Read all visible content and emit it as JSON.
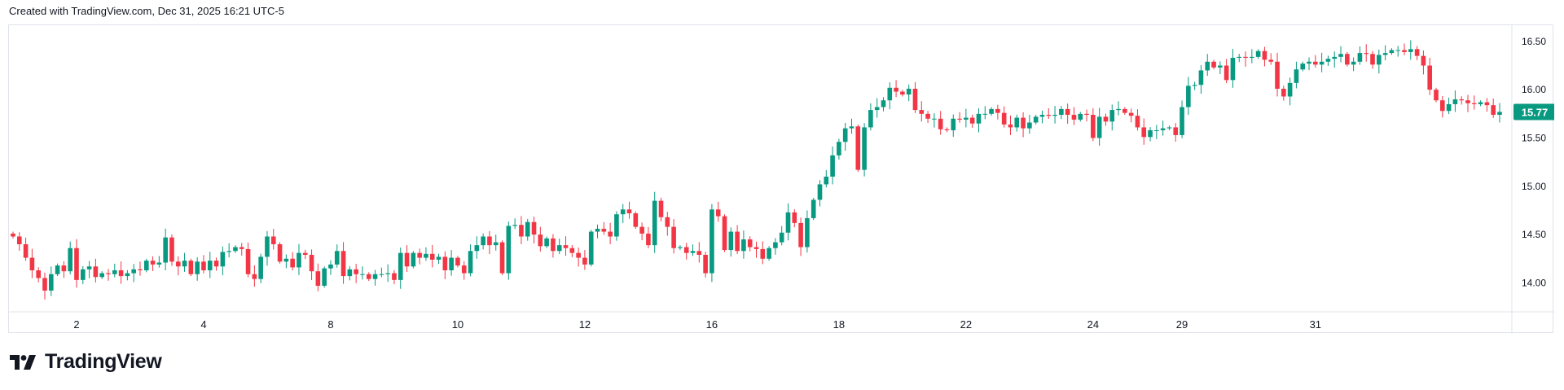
{
  "header": {
    "created_text": "Created with TradingView.com, Dec 31, 2025 16:21 UTC-5"
  },
  "footer": {
    "brand": "TradingView"
  },
  "colors": {
    "up": "#089981",
    "down": "#f23645",
    "grid": "#e0e3eb",
    "axis_text": "#131722",
    "badge_bg": "#089981",
    "badge_text": "#ffffff"
  },
  "icons": {
    "footer_logo": "tradingview-logo-icon"
  },
  "chart_data": {
    "type": "candlestick",
    "title": "",
    "xlabel": "",
    "ylabel": "",
    "ylim": [
      13.7,
      16.6
    ],
    "y_ticks": [
      "14.00",
      "14.50",
      "15.00",
      "15.50",
      "16.00",
      "16.50"
    ],
    "x_ticks": [
      {
        "label": "2",
        "index": 10
      },
      {
        "label": "4",
        "index": 30
      },
      {
        "label": "8",
        "index": 50
      },
      {
        "label": "10",
        "index": 70
      },
      {
        "label": "12",
        "index": 90
      },
      {
        "label": "16",
        "index": 110
      },
      {
        "label": "18",
        "index": 130
      },
      {
        "label": "22",
        "index": 150
      },
      {
        "label": "24",
        "index": 170
      },
      {
        "label": "29",
        "index": 184
      },
      {
        "label": "31",
        "index": 205
      }
    ],
    "last_price": "15.77",
    "grid": false,
    "closes": [
      14.48,
      14.4,
      14.26,
      14.13,
      14.05,
      13.92,
      14.09,
      14.18,
      14.12,
      14.36,
      14.03,
      14.14,
      14.17,
      14.06,
      14.1,
      14.09,
      14.13,
      14.07,
      14.1,
      14.14,
      14.13,
      14.23,
      14.19,
      14.21,
      14.47,
      14.22,
      14.17,
      14.23,
      14.09,
      14.22,
      14.13,
      14.23,
      14.17,
      14.32,
      14.33,
      14.37,
      14.35,
      14.09,
      14.04,
      14.27,
      14.48,
      14.4,
      14.22,
      14.25,
      14.16,
      14.31,
      14.29,
      14.12,
      13.97,
      14.15,
      14.19,
      14.33,
      14.07,
      14.14,
      14.09,
      14.09,
      14.04,
      14.09,
      14.09,
      14.1,
      14.03,
      14.31,
      14.17,
      14.31,
      14.26,
      14.3,
      14.24,
      14.27,
      14.13,
      14.26,
      14.18,
      14.1,
      14.33,
      14.39,
      14.48,
      14.39,
      14.42,
      14.1,
      14.59,
      14.6,
      14.48,
      14.63,
      14.5,
      14.38,
      14.46,
      14.33,
      14.39,
      14.36,
      14.31,
      14.26,
      14.19,
      14.53,
      14.56,
      14.53,
      14.48,
      14.71,
      14.76,
      14.72,
      14.58,
      14.51,
      14.39,
      14.85,
      14.68,
      14.58,
      14.36,
      14.37,
      14.31,
      14.33,
      14.29,
      14.1,
      14.76,
      14.69,
      14.34,
      14.53,
      14.33,
      14.45,
      14.37,
      14.35,
      14.25,
      14.36,
      14.42,
      14.52,
      14.73,
      14.62,
      14.37,
      14.67,
      14.86,
      15.02,
      15.1,
      15.32,
      15.46,
      15.6,
      15.62,
      15.17,
      15.61,
      15.79,
      15.82,
      15.89,
      16.02,
      15.98,
      15.95,
      16.01,
      15.79,
      15.75,
      15.7,
      15.7,
      15.59,
      15.58,
      15.7,
      15.69,
      15.71,
      15.65,
      15.75,
      15.75,
      15.8,
      15.76,
      15.64,
      15.61,
      15.71,
      15.6,
      15.66,
      15.72,
      15.74,
      15.73,
      15.74,
      15.8,
      15.74,
      15.69,
      15.75,
      15.74,
      15.5,
      15.72,
      15.67,
      15.79,
      15.8,
      15.76,
      15.73,
      15.61,
      15.51,
      15.58,
      15.58,
      15.6,
      15.61,
      15.53,
      15.82,
      16.04,
      16.05,
      16.2,
      16.29,
      16.23,
      16.25,
      16.1,
      16.33,
      16.34,
      16.33,
      16.34,
      16.4,
      16.31,
      16.29,
      16.01,
      15.93,
      16.07,
      16.21,
      16.27,
      16.29,
      16.26,
      16.29,
      16.32,
      16.34,
      16.37,
      16.26,
      16.29,
      16.38,
      16.37,
      16.26,
      16.36,
      16.38,
      16.41,
      16.41,
      16.39,
      16.42,
      16.35,
      16.25,
      16.0,
      15.89,
      15.78,
      15.85,
      15.9,
      15.89,
      15.86,
      15.85,
      15.87,
      15.84,
      15.74,
      15.77
    ]
  }
}
